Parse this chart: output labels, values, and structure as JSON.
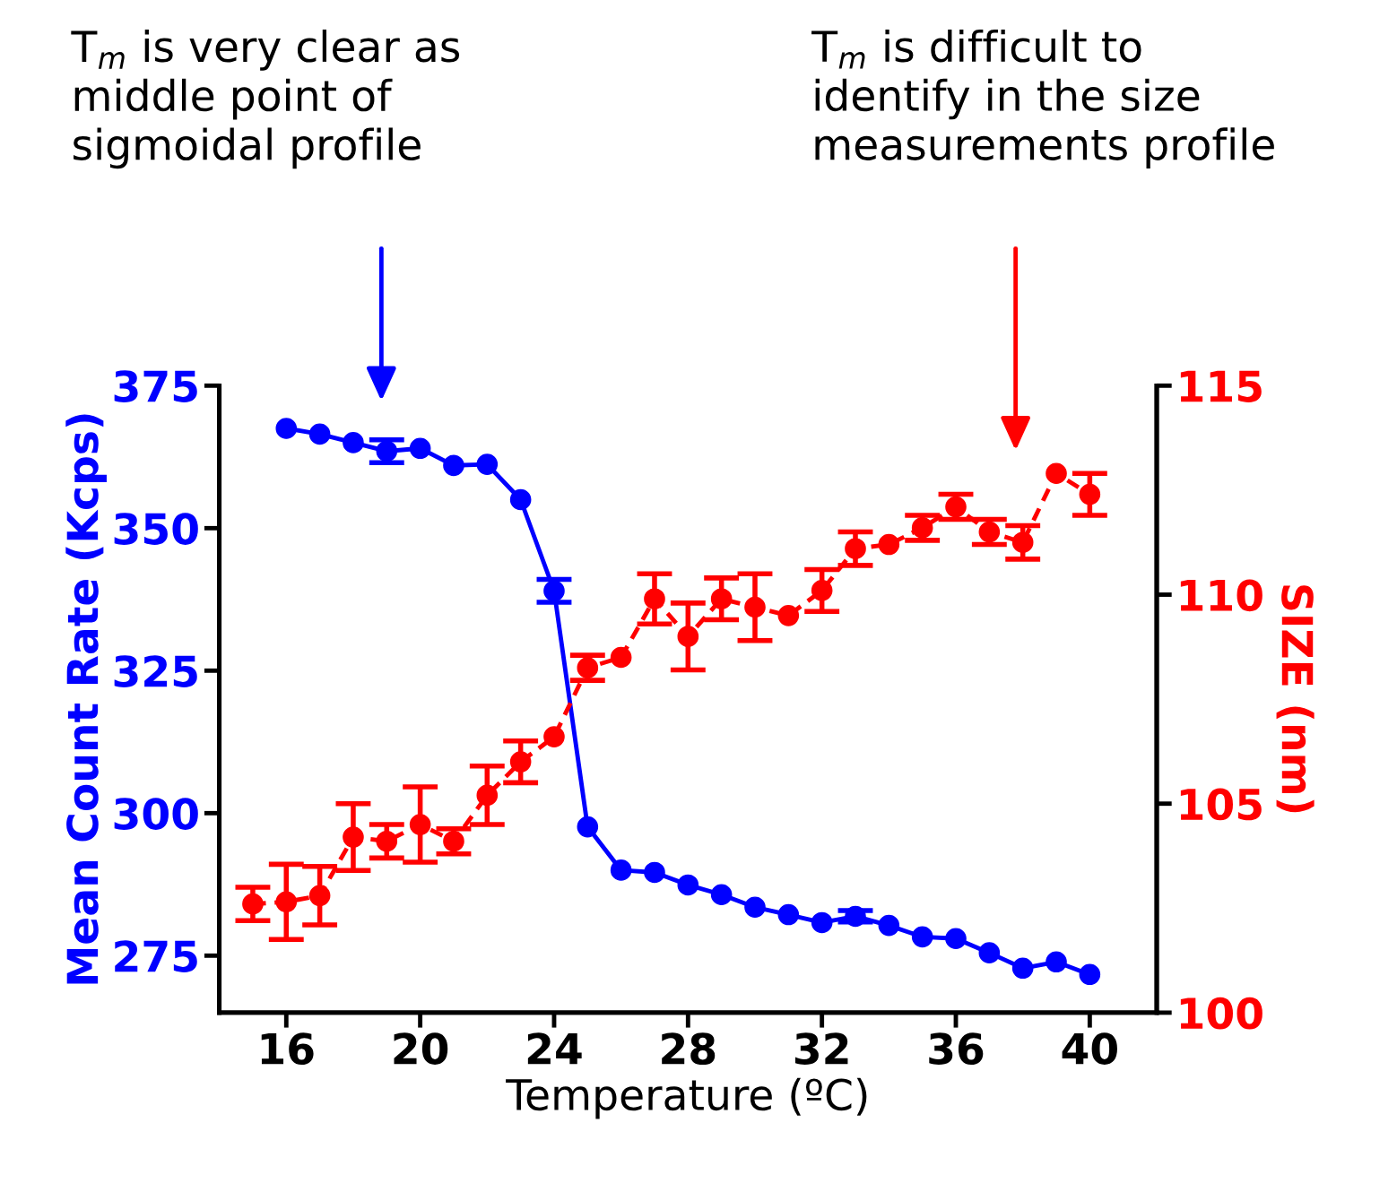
{
  "chart_data": {
    "type": "line",
    "xlabel": "Temperature (ºC)",
    "ylabel": "Mean Count Rate (Kcps)",
    "y2label": "SIZE (nm)",
    "xlim": [
      14,
      42
    ],
    "xticks": [
      16,
      20,
      24,
      28,
      32,
      36,
      40
    ],
    "ylim": [
      265,
      375
    ],
    "yticks": [
      275,
      300,
      325,
      350,
      375
    ],
    "y2lim": [
      100,
      115
    ],
    "y2ticks": [
      100,
      105,
      110,
      115
    ],
    "grid": false,
    "legend": false,
    "marker": "circle",
    "series": [
      {
        "color": "#0000ff",
        "line_style": "solid",
        "x": [
          16,
          17,
          18,
          19,
          20,
          21,
          22,
          23,
          24,
          25,
          26,
          27,
          28,
          29,
          30,
          31,
          32,
          33,
          34,
          35,
          36,
          37,
          38,
          39,
          40
        ],
        "values": [
          367.5,
          366.5,
          365,
          363.5,
          364,
          361,
          361.2,
          355,
          339,
          297.6,
          290,
          289.6,
          287.4,
          285.7,
          283.5,
          282.2,
          280.8,
          281.9,
          280.3,
          278.3,
          278,
          275.5,
          272.8,
          273.9,
          271.7
        ],
        "errors": [
          null,
          null,
          null,
          2,
          null,
          null,
          null,
          null,
          2,
          null,
          null,
          null,
          null,
          null,
          null,
          null,
          null,
          1,
          null,
          null,
          null,
          null,
          null,
          null,
          null
        ]
      },
      {
        "color": "#ff0000",
        "line_style": "dashed",
        "axis": "y2",
        "x": [
          15,
          16,
          17,
          18,
          19,
          20,
          21,
          22,
          23,
          24,
          25,
          26,
          27,
          28,
          29,
          30,
          31,
          32,
          33,
          34,
          35,
          36,
          37,
          38,
          39,
          40
        ],
        "values": [
          102.6,
          102.65,
          102.8,
          104.2,
          104.1,
          104.5,
          104.1,
          105.2,
          106.0,
          106.6,
          108.25,
          108.5,
          109.9,
          109.0,
          109.9,
          109.7,
          109.5,
          110.1,
          111.1,
          111.2,
          111.6,
          112.1,
          111.5,
          111.25,
          112.9,
          112.4
        ],
        "errors": [
          0.4,
          0.9,
          0.7,
          0.8,
          0.4,
          0.9,
          0.3,
          0.7,
          0.5,
          null,
          0.3,
          null,
          0.6,
          0.8,
          0.5,
          0.8,
          null,
          0.5,
          0.4,
          null,
          0.3,
          0.3,
          0.3,
          0.4,
          null,
          0.5
        ]
      }
    ],
    "annotations": [
      "T$_{m}$ is very clear as\nmiddle point of\nsigmoidal profile",
      "T$_{m}$ is difficult to\nidentify in the size\nmeasurements profile"
    ]
  }
}
